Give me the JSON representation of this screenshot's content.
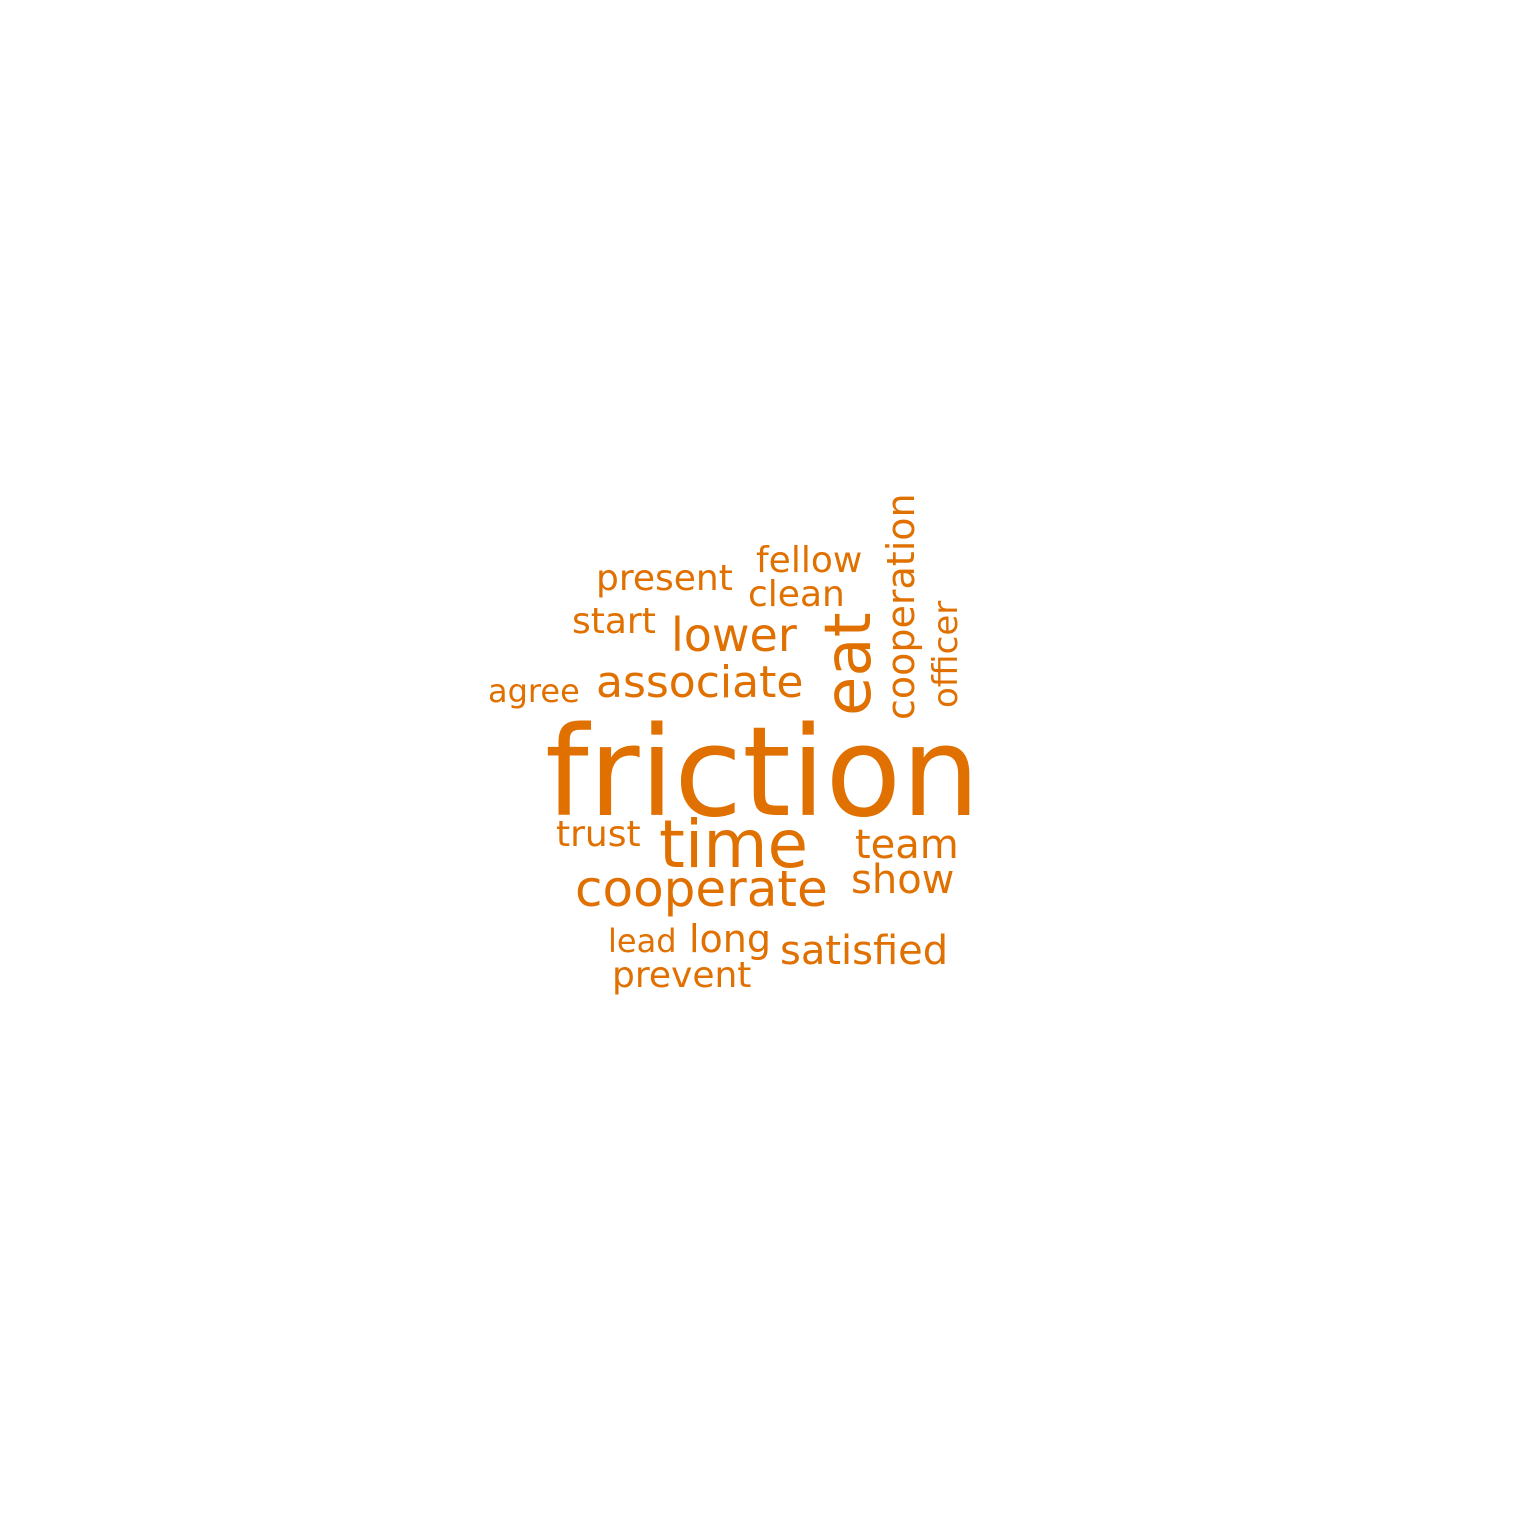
{
  "word_cloud": {
    "color": "#e07000",
    "words": [
      {
        "text": "friction",
        "name": "word-friction"
      },
      {
        "text": "time",
        "name": "word-time"
      },
      {
        "text": "eat",
        "name": "word-eat"
      },
      {
        "text": "cooperate",
        "name": "word-cooperate"
      },
      {
        "text": "associate",
        "name": "word-associate"
      },
      {
        "text": "lower",
        "name": "word-lower"
      },
      {
        "text": "cooperation",
        "name": "word-cooperation"
      },
      {
        "text": "satisfied",
        "name": "word-satisfied"
      },
      {
        "text": "team",
        "name": "word-team"
      },
      {
        "text": "show",
        "name": "word-show"
      },
      {
        "text": "fellow",
        "name": "word-fellow"
      },
      {
        "text": "clean",
        "name": "word-clean"
      },
      {
        "text": "present",
        "name": "word-present"
      },
      {
        "text": "long",
        "name": "word-long"
      },
      {
        "text": "prevent",
        "name": "word-prevent"
      },
      {
        "text": "trust",
        "name": "word-trust"
      },
      {
        "text": "start",
        "name": "word-start"
      },
      {
        "text": "officer",
        "name": "word-officer"
      },
      {
        "text": "agree",
        "name": "word-agree"
      },
      {
        "text": "lead",
        "name": "word-lead"
      }
    ]
  }
}
